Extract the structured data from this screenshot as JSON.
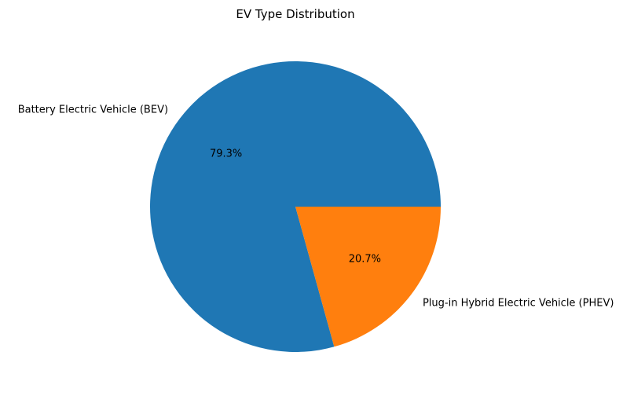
{
  "chart_data": {
    "type": "pie",
    "title": "EV Type Distribution",
    "slices": [
      {
        "label": "Battery Electric Vehicle (BEV)",
        "value": 79.3,
        "pct_label": "79.3%",
        "color": "#1f77b4"
      },
      {
        "label": "Plug-in Hybrid Electric Vehicle (PHEV)",
        "value": 20.7,
        "pct_label": "20.7%",
        "color": "#ff7f0e"
      }
    ],
    "start_angle_deg": 0,
    "direction": "counterclockwise"
  }
}
